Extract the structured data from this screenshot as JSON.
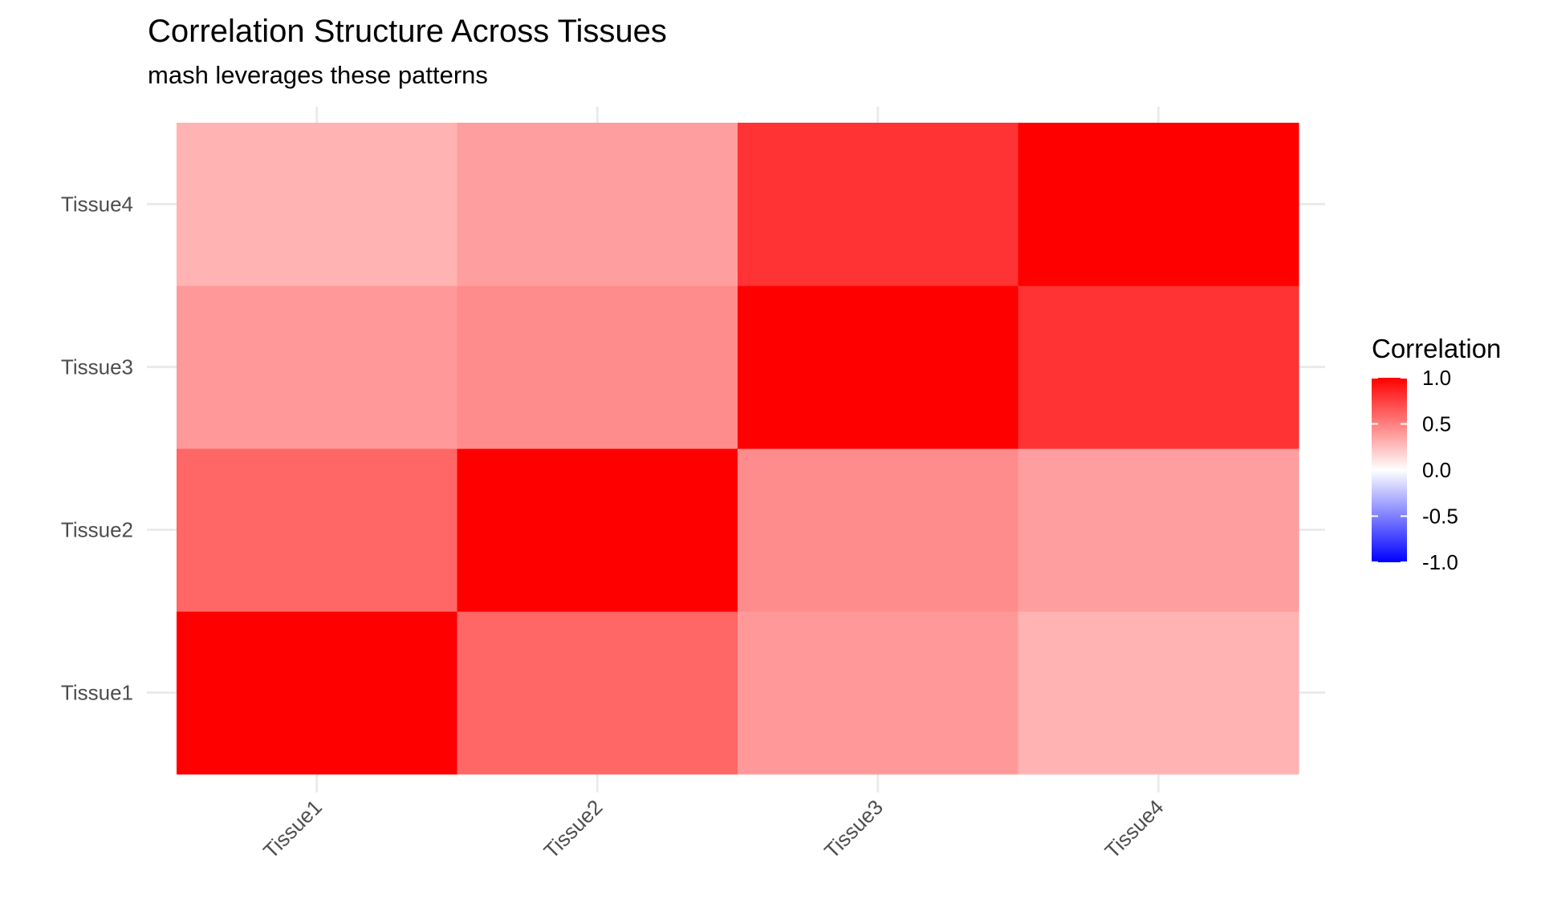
{
  "chart_data": {
    "type": "heatmap",
    "title": "Correlation Structure Across Tissues",
    "subtitle": "mash leverages these patterns",
    "xlabel": "",
    "ylabel": "",
    "x_categories": [
      "Tissue1",
      "Tissue2",
      "Tissue3",
      "Tissue4"
    ],
    "y_categories": [
      "Tissue1",
      "Tissue2",
      "Tissue3",
      "Tissue4"
    ],
    "values": [
      [
        1.0,
        0.6,
        0.4,
        0.3
      ],
      [
        0.6,
        1.0,
        0.45,
        0.38
      ],
      [
        0.4,
        0.45,
        1.0,
        0.8
      ],
      [
        0.3,
        0.38,
        0.8,
        1.0
      ]
    ],
    "legend": {
      "title": "Correlation",
      "placement": "right",
      "range": [
        -1,
        1
      ],
      "ticks": [
        "1.0",
        "0.5",
        "0.0",
        "-0.5",
        "-1.0"
      ],
      "tick_values": [
        1.0,
        0.5,
        0.0,
        -0.5,
        -1.0
      ],
      "colors": {
        "low": "#0000ff",
        "mid": "#ffffff",
        "high": "#ff0000"
      }
    },
    "grid": true
  }
}
